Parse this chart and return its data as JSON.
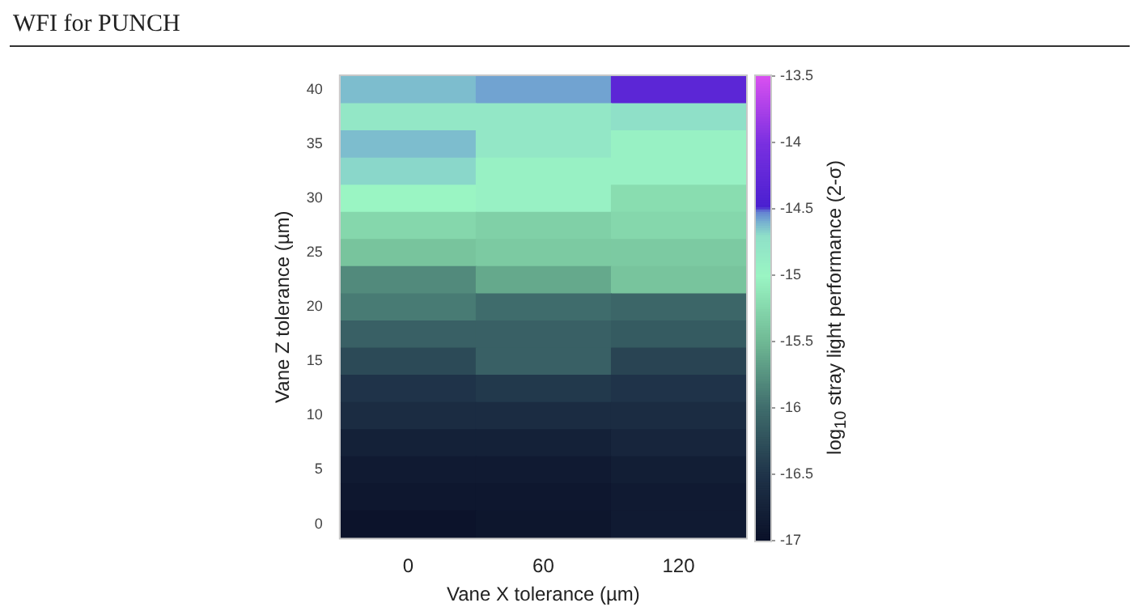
{
  "chart_data": {
    "type": "heatmap",
    "title": "WFI for PUNCH",
    "xlabel": "Vane X tolerance (µm)",
    "ylabel": "Vane Z tolerance (µm)",
    "clabel": "log$_{10}$ stray light performance (2-σ)",
    "categories": [
      "0",
      "60",
      "120"
    ],
    "y_categories": [
      "40",
      null,
      "35",
      null,
      "30",
      null,
      "25",
      null,
      "20",
      null,
      "15",
      null,
      "10",
      null,
      "5",
      null,
      "0"
    ],
    "cells": [
      [
        -14.62,
        -14.57,
        -14.3
      ],
      [
        -14.8,
        -14.8,
        -14.7
      ],
      [
        -14.62,
        -14.8,
        -14.95
      ],
      [
        -14.68,
        -14.95,
        -14.95
      ],
      [
        -15.0,
        -14.95,
        -15.2
      ],
      [
        -15.25,
        -15.3,
        -15.25
      ],
      [
        -15.4,
        -15.35,
        -15.35
      ],
      [
        -15.8,
        -15.6,
        -15.4
      ],
      [
        -15.9,
        -16.0,
        -16.05
      ],
      [
        -16.1,
        -16.1,
        -16.15
      ],
      [
        -16.3,
        -16.1,
        -16.35
      ],
      [
        -16.5,
        -16.45,
        -16.5
      ],
      [
        -16.6,
        -16.6,
        -16.6
      ],
      [
        -16.75,
        -16.75,
        -16.7
      ],
      [
        -16.85,
        -16.85,
        -16.8
      ],
      [
        -16.9,
        -16.9,
        -16.85
      ],
      [
        -16.95,
        -16.92,
        -16.85
      ]
    ],
    "clim": [
      -17,
      -13.5
    ],
    "cticks": [
      -17,
      -16.5,
      -16,
      -15.5,
      -15,
      -14.5,
      -14,
      -13.5
    ],
    "grid": false
  }
}
